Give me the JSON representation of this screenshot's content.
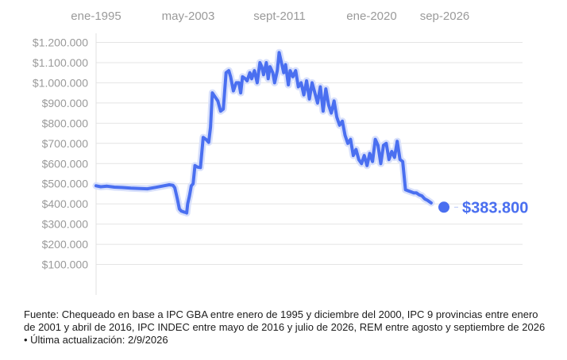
{
  "chart_data": {
    "type": "line",
    "x_tick_labels": [
      "ene-1995",
      "may-2003",
      "sept-2011",
      "ene-2020",
      "sep-2026"
    ],
    "y_tick_labels": [
      "$100.000",
      "$200.000",
      "$300.000",
      "$400.000",
      "$500.000",
      "$600.000",
      "$700.000",
      "$800.000",
      "$900.000",
      "$1.000.000",
      "$1.100.000",
      "$1.200.000"
    ],
    "y_ticks": [
      100000,
      200000,
      300000,
      400000,
      500000,
      600000,
      700000,
      800000,
      900000,
      1000000,
      1100000,
      1200000
    ],
    "ylim": [
      0,
      1250000
    ],
    "xlim": [
      "1995-01",
      "2026-09"
    ],
    "grid": true,
    "series": [
      {
        "color": "#4a6ff0",
        "points": [
          [
            "1995-01",
            490000
          ],
          [
            "1995-06",
            485000
          ],
          [
            "1996-01",
            488000
          ],
          [
            "1996-09",
            483000
          ],
          [
            "1997-06",
            481000
          ],
          [
            "1998-03",
            478000
          ],
          [
            "1999-01",
            476000
          ],
          [
            "1999-09",
            475000
          ],
          [
            "2000-06",
            482000
          ],
          [
            "2001-03",
            490000
          ],
          [
            "2001-09",
            495000
          ],
          [
            "2002-01",
            492000
          ],
          [
            "2002-03",
            480000
          ],
          [
            "2002-06",
            420000
          ],
          [
            "2002-08",
            375000
          ],
          [
            "2002-10",
            365000
          ],
          [
            "2003-01",
            360000
          ],
          [
            "2003-03",
            358000
          ],
          [
            "2003-04",
            355000
          ],
          [
            "2003-05",
            400000
          ],
          [
            "2003-07",
            440000
          ],
          [
            "2003-09",
            490000
          ],
          [
            "2003-11",
            500000
          ],
          [
            "2004-01",
            590000
          ],
          [
            "2004-04",
            582000
          ],
          [
            "2004-07",
            580000
          ],
          [
            "2004-10",
            730000
          ],
          [
            "2005-01",
            720000
          ],
          [
            "2005-04",
            705000
          ],
          [
            "2005-06",
            780000
          ],
          [
            "2005-08",
            950000
          ],
          [
            "2005-11",
            930000
          ],
          [
            "2006-02",
            910000
          ],
          [
            "2006-05",
            860000
          ],
          [
            "2006-08",
            870000
          ],
          [
            "2006-11",
            1050000
          ],
          [
            "2007-02",
            1060000
          ],
          [
            "2007-04",
            1030000
          ],
          [
            "2007-07",
            960000
          ],
          [
            "2007-10",
            1000000
          ],
          [
            "2008-01",
            1000000
          ],
          [
            "2008-03",
            950000
          ],
          [
            "2008-05",
            1030000
          ],
          [
            "2008-08",
            1020000
          ],
          [
            "2008-10",
            1010000
          ],
          [
            "2009-01",
            1050000
          ],
          [
            "2009-03",
            1020000
          ],
          [
            "2009-06",
            1060000
          ],
          [
            "2009-09",
            1000000
          ],
          [
            "2009-12",
            1100000
          ],
          [
            "2010-02",
            1080000
          ],
          [
            "2010-04",
            1040000
          ],
          [
            "2010-07",
            1100000
          ],
          [
            "2010-09",
            1020000
          ],
          [
            "2010-11",
            1080000
          ],
          [
            "2011-02",
            1050000
          ],
          [
            "2011-04",
            1000000
          ],
          [
            "2011-07",
            1060000
          ],
          [
            "2011-09",
            1150000
          ],
          [
            "2011-11",
            1110000
          ],
          [
            "2012-02",
            1050000
          ],
          [
            "2012-04",
            1090000
          ],
          [
            "2012-07",
            990000
          ],
          [
            "2012-09",
            1060000
          ],
          [
            "2012-12",
            1030000
          ],
          [
            "2013-03",
            1060000
          ],
          [
            "2013-06",
            980000
          ],
          [
            "2013-09",
            1000000
          ],
          [
            "2013-12",
            940000
          ],
          [
            "2014-03",
            1010000
          ],
          [
            "2014-06",
            920000
          ],
          [
            "2014-09",
            1000000
          ],
          [
            "2014-12",
            950000
          ],
          [
            "2015-03",
            900000
          ],
          [
            "2015-06",
            980000
          ],
          [
            "2015-09",
            860000
          ],
          [
            "2015-12",
            970000
          ],
          [
            "2016-03",
            890000
          ],
          [
            "2016-06",
            850000
          ],
          [
            "2016-09",
            910000
          ],
          [
            "2016-12",
            830000
          ],
          [
            "2017-03",
            790000
          ],
          [
            "2017-06",
            810000
          ],
          [
            "2017-09",
            740000
          ],
          [
            "2017-12",
            700000
          ],
          [
            "2018-03",
            720000
          ],
          [
            "2018-06",
            640000
          ],
          [
            "2018-09",
            670000
          ],
          [
            "2018-12",
            620000
          ],
          [
            "2019-03",
            600000
          ],
          [
            "2019-06",
            640000
          ],
          [
            "2019-09",
            590000
          ],
          [
            "2019-12",
            650000
          ],
          [
            "2020-03",
            610000
          ],
          [
            "2020-06",
            720000
          ],
          [
            "2020-09",
            690000
          ],
          [
            "2020-12",
            600000
          ],
          [
            "2021-03",
            690000
          ],
          [
            "2021-06",
            700000
          ],
          [
            "2021-09",
            620000
          ],
          [
            "2021-12",
            660000
          ],
          [
            "2022-03",
            630000
          ],
          [
            "2022-06",
            710000
          ],
          [
            "2022-09",
            620000
          ],
          [
            "2022-12",
            610000
          ],
          [
            "2023-03",
            470000
          ],
          [
            "2023-06",
            465000
          ],
          [
            "2023-09",
            460000
          ],
          [
            "2023-12",
            455000
          ],
          [
            "2024-03",
            455000
          ],
          [
            "2024-06",
            445000
          ],
          [
            "2024-09",
            440000
          ],
          [
            "2024-12",
            425000
          ],
          [
            "2025-03",
            418000
          ],
          [
            "2025-07",
            405000
          ]
        ]
      }
    ],
    "highlight": {
      "date": "2026-09",
      "value": 383800,
      "label": "$383.800"
    }
  },
  "source_text": "Fuente: Chequeado en base a IPC GBA entre enero de 1995 y diciembre del 2000, IPC 9 provincias entre enero de 2001 y abril de 2016, IPC INDEC entre mayo de 2016 y julio de 2026, REM entre agosto y septiembre de 2026 • Última actualización: 2/9/2026"
}
